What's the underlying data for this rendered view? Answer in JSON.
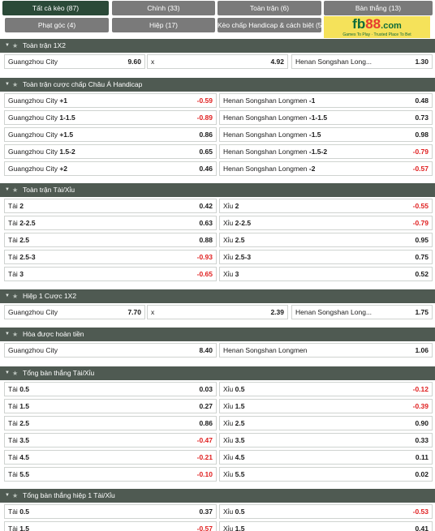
{
  "tabs": [
    {
      "label": "Tất cả kèo (87)",
      "active": true
    },
    {
      "label": "Chính (33)",
      "active": false
    },
    {
      "label": "Toàn trận (6)",
      "active": false
    },
    {
      "label": "Bàn thắng (13)",
      "active": false
    },
    {
      "label": "Phạt góc (4)",
      "active": false
    },
    {
      "label": "Hiệp (17)",
      "active": false
    },
    {
      "label": "Kèo chấp Handicap & cách biệt (5)",
      "active": false
    }
  ],
  "logo": {
    "brand": "fb",
    "accent": "88",
    "domain": ".com",
    "tagline": "Games To Play · Trusted Place To Bet"
  },
  "sections": [
    {
      "title": "Toàn trận 1X2",
      "rows": [
        [
          {
            "name": "Guangzhou City",
            "line": "",
            "odd": "9.60"
          },
          {
            "name": "x",
            "line": "",
            "odd": "4.92"
          },
          {
            "name": "Henan Songshan Long...",
            "line": "",
            "odd": "1.30"
          }
        ]
      ]
    },
    {
      "title": "Toàn trận cược chấp Châu Á Handicap",
      "rows": [
        [
          {
            "name": "Guangzhou City",
            "line": "+1",
            "odd": "-0.59"
          },
          {
            "name": "Henan Songshan Longmen",
            "line": "-1",
            "odd": "0.48"
          }
        ],
        [
          {
            "name": "Guangzhou City",
            "line": "1-1.5",
            "odd": "-0.89"
          },
          {
            "name": "Henan Songshan Longmen",
            "line": "-1-1.5",
            "odd": "0.73"
          }
        ],
        [
          {
            "name": "Guangzhou City",
            "line": "+1.5",
            "odd": "0.86"
          },
          {
            "name": "Henan Songshan Longmen",
            "line": "-1.5",
            "odd": "0.98"
          }
        ],
        [
          {
            "name": "Guangzhou City",
            "line": "1.5-2",
            "odd": "0.65"
          },
          {
            "name": "Henan Songshan Longmen",
            "line": "-1.5-2",
            "odd": "-0.79"
          }
        ],
        [
          {
            "name": "Guangzhou City",
            "line": "+2",
            "odd": "0.46"
          },
          {
            "name": "Henan Songshan Longmen",
            "line": "-2",
            "odd": "-0.57"
          }
        ]
      ]
    },
    {
      "title": "Toàn trận Tài/Xỉu",
      "rows": [
        [
          {
            "name": "Tài",
            "line": "2",
            "odd": "0.42"
          },
          {
            "name": "Xỉu",
            "line": "2",
            "odd": "-0.55"
          }
        ],
        [
          {
            "name": "Tài",
            "line": "2-2.5",
            "odd": "0.63"
          },
          {
            "name": "Xỉu",
            "line": "2-2.5",
            "odd": "-0.79"
          }
        ],
        [
          {
            "name": "Tài",
            "line": "2.5",
            "odd": "0.88"
          },
          {
            "name": "Xỉu",
            "line": "2.5",
            "odd": "0.95"
          }
        ],
        [
          {
            "name": "Tài",
            "line": "2.5-3",
            "odd": "-0.93"
          },
          {
            "name": "Xỉu",
            "line": "2.5-3",
            "odd": "0.75"
          }
        ],
        [
          {
            "name": "Tài",
            "line": "3",
            "odd": "-0.65"
          },
          {
            "name": "Xỉu",
            "line": "3",
            "odd": "0.52"
          }
        ]
      ]
    },
    {
      "title": "Hiệp 1 Cược 1X2",
      "rows": [
        [
          {
            "name": "Guangzhou City",
            "line": "",
            "odd": "7.70"
          },
          {
            "name": "x",
            "line": "",
            "odd": "2.39"
          },
          {
            "name": "Henan Songshan Long...",
            "line": "",
            "odd": "1.75"
          }
        ]
      ]
    },
    {
      "title": "Hòa được hoàn tiền",
      "rows": [
        [
          {
            "name": "Guangzhou City",
            "line": "",
            "odd": "8.40"
          },
          {
            "name": "Henan Songshan Longmen",
            "line": "",
            "odd": "1.06"
          }
        ]
      ]
    },
    {
      "title": "Tổng bàn thắng Tài/Xỉu",
      "rows": [
        [
          {
            "name": "Tài",
            "line": "0.5",
            "odd": "0.03"
          },
          {
            "name": "Xỉu",
            "line": "0.5",
            "odd": "-0.12"
          }
        ],
        [
          {
            "name": "Tài",
            "line": "1.5",
            "odd": "0.27"
          },
          {
            "name": "Xỉu",
            "line": "1.5",
            "odd": "-0.39"
          }
        ],
        [
          {
            "name": "Tài",
            "line": "2.5",
            "odd": "0.86"
          },
          {
            "name": "Xỉu",
            "line": "2.5",
            "odd": "0.90"
          }
        ],
        [
          {
            "name": "Tài",
            "line": "3.5",
            "odd": "-0.47"
          },
          {
            "name": "Xỉu",
            "line": "3.5",
            "odd": "0.33"
          }
        ],
        [
          {
            "name": "Tài",
            "line": "4.5",
            "odd": "-0.21"
          },
          {
            "name": "Xỉu",
            "line": "4.5",
            "odd": "0.11"
          }
        ],
        [
          {
            "name": "Tài",
            "line": "5.5",
            "odd": "-0.10"
          },
          {
            "name": "Xỉu",
            "line": "5.5",
            "odd": "0.02"
          }
        ]
      ]
    },
    {
      "title": "Tổng bàn thắng hiệp 1 Tài/Xỉu",
      "rows": [
        [
          {
            "name": "Tài",
            "line": "0.5",
            "odd": "0.37"
          },
          {
            "name": "Xỉu",
            "line": "0.5",
            "odd": "-0.53"
          }
        ],
        [
          {
            "name": "Tài",
            "line": "1.5",
            "odd": "-0.57"
          },
          {
            "name": "Xỉu",
            "line": "1.5",
            "odd": "0.41"
          }
        ]
      ]
    }
  ]
}
